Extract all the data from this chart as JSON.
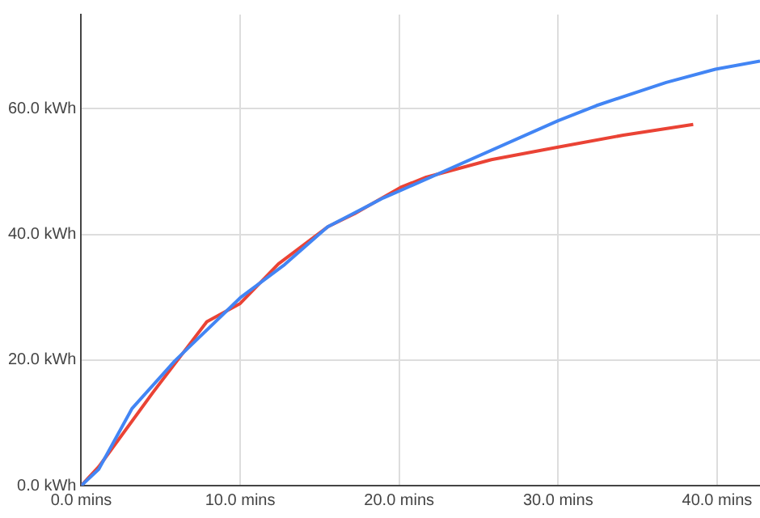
{
  "chart_data": {
    "type": "line",
    "x": [
      0,
      1.1,
      3.2,
      5.9,
      10,
      12.8,
      15.5,
      19,
      20.1,
      30,
      32.4,
      36.8,
      39.9,
      42.7
    ],
    "series": [
      {
        "color": "#4285f4",
        "values": [
          0,
          2.6,
          12.3,
          19.9,
          29.9,
          35.2,
          41.2,
          45.8,
          47,
          58.1,
          60.5,
          64.2,
          66.3,
          67.6
        ]
      },
      {
        "color": "#ea4335",
        "x": [
          0,
          1.1,
          4.5,
          7.9,
          10,
          12.4,
          15.5,
          17.2,
          20.1,
          21.7,
          25.8,
          30,
          34.1,
          38.5
        ],
        "values": [
          0,
          3,
          14.8,
          26.1,
          29,
          35.3,
          41.2,
          43.3,
          47.5,
          49.1,
          51.9,
          53.9,
          55.8,
          57.5
        ]
      }
    ],
    "xlim": [
      0,
      42.7
    ],
    "ylim": [
      0,
      75
    ],
    "xticks": [
      {
        "value": 0,
        "label": "0.0 mins"
      },
      {
        "value": 10,
        "label": "10.0 mins"
      },
      {
        "value": 20,
        "label": "20.0 mins"
      },
      {
        "value": 30,
        "label": "30.0 mins"
      },
      {
        "value": 40,
        "label": "40.0 mins"
      }
    ],
    "yticks": [
      {
        "value": 0,
        "label": "0.0 kWh"
      },
      {
        "value": 20,
        "label": "20.0 kWh"
      },
      {
        "value": 40,
        "label": "40.0 kWh"
      },
      {
        "value": 60,
        "label": "60.0 kWh"
      }
    ],
    "grid": true,
    "marker": "none",
    "line_style": "solid",
    "legend": false
  }
}
